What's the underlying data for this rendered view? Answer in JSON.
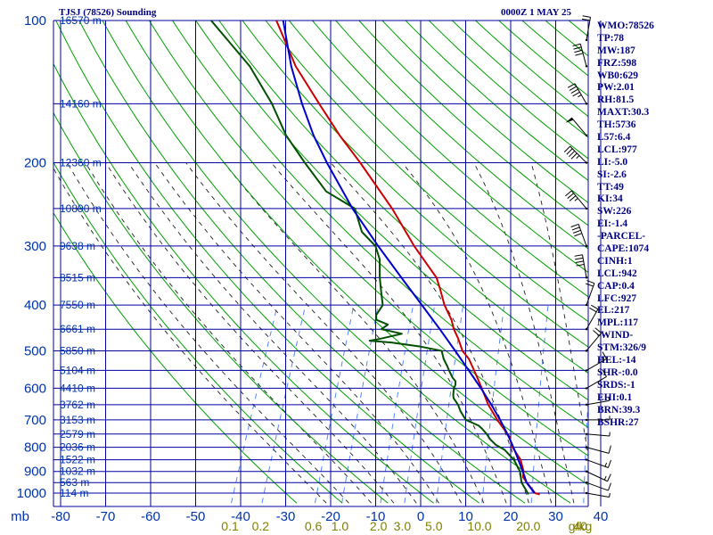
{
  "header": {
    "title": "TJSJ (78526) Sounding",
    "valid": "0000Z  1 MAY 25"
  },
  "indices": [
    "WMO:78526",
    "TP:78",
    "MW:187",
    "FRZ:598",
    "WB0:629",
    "PW:2.01",
    "RH:81.5",
    "MAXT:30.3",
    "TH:5736",
    "L57:6.4",
    "LCL:977",
    "LI:-5.0",
    "SI:-2.6",
    "TT:49",
    "KI:34",
    "SW:226",
    "EI:-1.4",
    "-PARCEL-",
    "CAPE:1074",
    "CINH:1",
    "LCL:942",
    "CAP:0.4",
    "LFC:927",
    "EL:217",
    "MPL:117",
    "-WIND-",
    "STM:326/9",
    "HEL:-14",
    "SHR-:0.0",
    "SRDS:-1",
    "EHI:0.1",
    "BRN:39.3",
    "BSHR:27"
  ],
  "colors": {
    "grid": "#0000a0",
    "dry_adiabat": "#00a000",
    "moist_adiabat": "#202020",
    "mixing_ratio": "#5588ff",
    "temperature": "#cc0000",
    "dewpoint": "#005000",
    "parcel": "#0000cc",
    "ticks": "#0033aa",
    "mixing_labels": "#808000"
  },
  "chart_data": {
    "type": "line",
    "subtype": "skew-T log-p sounding",
    "pressure_label": "mb",
    "pressure_ticks": [
      100,
      200,
      300,
      400,
      500,
      600,
      700,
      800,
      900,
      1000
    ],
    "temperature_ticks": [
      -80,
      -70,
      -60,
      -50,
      -40,
      -30,
      -20,
      -10,
      0,
      10,
      20,
      30,
      40
    ],
    "temperature_range": [
      -80,
      40
    ],
    "pressure_range": [
      1050,
      100
    ],
    "height_levels": [
      {
        "p": 100,
        "label": "16570 m"
      },
      {
        "p": 150,
        "label": "14160 m"
      },
      {
        "p": 200,
        "label": "12360 m"
      },
      {
        "p": 250,
        "label": "10890 m"
      },
      {
        "p": 300,
        "label": "9638 m"
      },
      {
        "p": 350,
        "label": "8515 m"
      },
      {
        "p": 400,
        "label": "7550 m"
      },
      {
        "p": 450,
        "label": "6661 m"
      },
      {
        "p": 500,
        "label": "5850 m"
      },
      {
        "p": 550,
        "label": "5104 m"
      },
      {
        "p": 600,
        "label": "4410 m"
      },
      {
        "p": 650,
        "label": "3762 m"
      },
      {
        "p": 700,
        "label": "3153 m"
      },
      {
        "p": 750,
        "label": "2579 m"
      },
      {
        "p": 800,
        "label": "2036 m"
      },
      {
        "p": 850,
        "label": "1522 m"
      },
      {
        "p": 900,
        "label": "1032 m"
      },
      {
        "p": 950,
        "label": "563 m"
      },
      {
        "p": 1000,
        "label": "114 m"
      }
    ],
    "mixing_ratio_labels": [
      {
        "w": 0.1,
        "label": "0.1"
      },
      {
        "w": 0.2,
        "label": "0.2"
      },
      {
        "w": 0.6,
        "label": "0.6"
      },
      {
        "w": 1.0,
        "label": "1.0"
      },
      {
        "w": 2.0,
        "label": "2.0"
      },
      {
        "w": 3.0,
        "label": "3.0"
      },
      {
        "w": 5.0,
        "label": "5.0"
      },
      {
        "w": 10.0,
        "label": "10.0"
      },
      {
        "w": 20.0,
        "label": "20.0"
      },
      {
        "w": 40.0,
        "label": "40"
      }
    ],
    "mixing_ratio_unit": "g/kg",
    "series": [
      {
        "role": "temperature",
        "points": [
          [
            1007,
            26.6
          ],
          [
            1000,
            25.4
          ],
          [
            950,
            22.6
          ],
          [
            925,
            21.2
          ],
          [
            900,
            20.8
          ],
          [
            850,
            19.0
          ],
          [
            800,
            16.0
          ],
          [
            760,
            14.3
          ],
          [
            700,
            10.0
          ],
          [
            650,
            6.5
          ],
          [
            600,
            3.5
          ],
          [
            560,
            0.8
          ],
          [
            520,
            -2.2
          ],
          [
            500,
            -4.4
          ],
          [
            470,
            -6.6
          ],
          [
            450,
            -8.4
          ],
          [
            430,
            -9.8
          ],
          [
            400,
            -12.8
          ],
          [
            370,
            -15.3
          ],
          [
            350,
            -17.2
          ],
          [
            300,
            -25.2
          ],
          [
            250,
            -33.7
          ],
          [
            200,
            -45.2
          ],
          [
            175,
            -52.4
          ],
          [
            150,
            -60.0
          ],
          [
            125,
            -68.8
          ],
          [
            100,
            -77.5
          ]
        ]
      },
      {
        "role": "dewpoint",
        "points": [
          [
            1007,
            24.0
          ],
          [
            1000,
            23.8
          ],
          [
            950,
            21.4
          ],
          [
            900,
            20.0
          ],
          [
            850,
            17.5
          ],
          [
            810,
            14.5
          ],
          [
            790,
            12.0
          ],
          [
            770,
            10.3
          ],
          [
            750,
            9.0
          ],
          [
            730,
            7.4
          ],
          [
            720,
            6.4
          ],
          [
            700,
            3.0
          ],
          [
            690,
            2.3
          ],
          [
            670,
            0.9
          ],
          [
            650,
            -0.2
          ],
          [
            630,
            -1.8
          ],
          [
            620,
            -2.2
          ],
          [
            600,
            -2.7
          ],
          [
            590,
            -2.7
          ],
          [
            580,
            -3.0
          ],
          [
            570,
            -4.0
          ],
          [
            550,
            -5.5
          ],
          [
            540,
            -6.2
          ],
          [
            520,
            -7.8
          ],
          [
            500,
            -9.0
          ],
          [
            490,
            -14.0
          ],
          [
            480,
            -21.0
          ],
          [
            476,
            -26.0
          ],
          [
            472,
            -24.0
          ],
          [
            460,
            -19.5
          ],
          [
            455,
            -22.0
          ],
          [
            450,
            -24.5
          ],
          [
            440,
            -23.5
          ],
          [
            430,
            -26.5
          ],
          [
            420,
            -27.0
          ],
          [
            400,
            -26.5
          ],
          [
            380,
            -27.8
          ],
          [
            350,
            -29.8
          ],
          [
            320,
            -31.6
          ],
          [
            300,
            -33.8
          ],
          [
            280,
            -38.2
          ],
          [
            250,
            -42.0
          ],
          [
            230,
            -50.0
          ],
          [
            200,
            -57.5
          ],
          [
            175,
            -64.3
          ],
          [
            150,
            -70.5
          ],
          [
            125,
            -79.0
          ],
          [
            100,
            -92.0
          ]
        ]
      },
      {
        "role": "parcel",
        "points": [
          [
            1000,
            25.3
          ],
          [
            950,
            22.5
          ],
          [
            925,
            21.6
          ],
          [
            900,
            20.6
          ],
          [
            850,
            18.5
          ],
          [
            800,
            16.2
          ],
          [
            750,
            13.6
          ],
          [
            700,
            10.6
          ],
          [
            650,
            7.2
          ],
          [
            600,
            3.3
          ],
          [
            550,
            -1.1
          ],
          [
            500,
            -6.0
          ],
          [
            450,
            -11.5
          ],
          [
            400,
            -17.8
          ],
          [
            350,
            -25.0
          ],
          [
            300,
            -33.2
          ],
          [
            250,
            -42.5
          ],
          [
            200,
            -52.6
          ],
          [
            175,
            -58.2
          ],
          [
            150,
            -63.8
          ],
          [
            125,
            -69.8
          ],
          [
            100,
            -76.0
          ]
        ]
      }
    ],
    "wind_barbs": [
      {
        "p": 1000,
        "dir": 100,
        "spd": 5
      },
      {
        "p": 950,
        "dir": 110,
        "spd": 10
      },
      {
        "p": 900,
        "dir": 115,
        "spd": 15
      },
      {
        "p": 850,
        "dir": 110,
        "spd": 15
      },
      {
        "p": 800,
        "dir": 105,
        "spd": 10
      },
      {
        "p": 750,
        "dir": 95,
        "spd": 5
      },
      {
        "p": 700,
        "dir": 90,
        "spd": 5
      },
      {
        "p": 650,
        "dir": 80,
        "spd": 5
      },
      {
        "p": 600,
        "dir": 60,
        "spd": 10
      },
      {
        "p": 550,
        "dir": 60,
        "spd": 15
      },
      {
        "p": 500,
        "dir": 40,
        "spd": 20
      },
      {
        "p": 450,
        "dir": 30,
        "spd": 20
      },
      {
        "p": 400,
        "dir": 20,
        "spd": 20
      },
      {
        "p": 350,
        "dir": 350,
        "spd": 40
      },
      {
        "p": 300,
        "dir": 340,
        "spd": 40
      },
      {
        "p": 250,
        "dir": 320,
        "spd": 35
      },
      {
        "p": 200,
        "dir": 315,
        "spd": 45
      },
      {
        "p": 175,
        "dir": 320,
        "spd": 50
      },
      {
        "p": 150,
        "dir": 330,
        "spd": 45
      },
      {
        "p": 125,
        "dir": 345,
        "spd": 40
      },
      {
        "p": 110,
        "dir": 10,
        "spd": 20
      }
    ]
  }
}
